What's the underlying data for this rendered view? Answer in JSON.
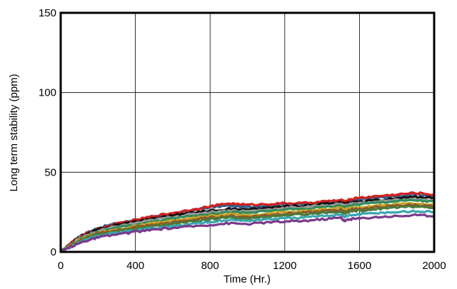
{
  "chart_data": {
    "type": "line",
    "title": "",
    "xlabel": "Time (Hr.)",
    "ylabel": "Long term stability (ppm)",
    "xlim": [
      0,
      2000
    ],
    "ylim": [
      0,
      150
    ],
    "x_ticks": [
      "0",
      "400",
      "800",
      "1200",
      "1600",
      "2000"
    ],
    "y_ticks": [
      "0",
      "50",
      "100",
      "150"
    ],
    "grid": true,
    "legend": "none",
    "x": [
      0,
      50,
      100,
      150,
      200,
      300,
      400,
      500,
      600,
      700,
      800,
      900,
      1000,
      1100,
      1200,
      1300,
      1400,
      1500,
      1520,
      1550,
      1600,
      1700,
      1800,
      1900,
      2000
    ],
    "series": [
      {
        "color": "#2f5d8a",
        "values": [
          0,
          5,
          10,
          12.5,
          15,
          18,
          20,
          22,
          24,
          26,
          28,
          29,
          28,
          29,
          30,
          30,
          31,
          32,
          31,
          32,
          33,
          34,
          35,
          36,
          35
        ]
      },
      {
        "color": "#d42020",
        "values": [
          0,
          5,
          9.5,
          12,
          14.5,
          17.5,
          20,
          22.5,
          24.5,
          26.5,
          28.5,
          30.5,
          29.5,
          30,
          30.5,
          30.5,
          31.5,
          32.5,
          31.5,
          33,
          34,
          35,
          36,
          37,
          36
        ]
      },
      {
        "color": "#111111",
        "values": [
          0,
          4.5,
          9,
          11.5,
          14,
          17,
          19,
          21,
          23,
          24.5,
          26,
          27,
          26.5,
          27.5,
          28.5,
          29,
          30,
          31,
          30,
          31,
          31.5,
          32.5,
          33.5,
          34.5,
          34
        ]
      },
      {
        "color": "#999999",
        "values": [
          0,
          4.5,
          8.5,
          11,
          13,
          16,
          18,
          20,
          22,
          23.5,
          25,
          26,
          25.5,
          26.5,
          27.5,
          28,
          29,
          30,
          29,
          30,
          30.5,
          31.5,
          32.5,
          33,
          32
        ]
      },
      {
        "color": "#2e8b57",
        "values": [
          0,
          4,
          8,
          10.5,
          12.5,
          15,
          17,
          19,
          21,
          22.5,
          24,
          25,
          24.5,
          25.5,
          26.5,
          27,
          28,
          29,
          28,
          29,
          30,
          31,
          32,
          32.5,
          31.5
        ]
      },
      {
        "color": "#c9a227",
        "values": [
          0,
          4,
          7.5,
          10,
          12,
          14,
          16,
          18,
          19.5,
          21,
          22.5,
          23.5,
          23,
          24,
          25,
          25.5,
          26.5,
          27.5,
          26.5,
          27.5,
          28,
          29,
          30,
          30.5,
          29.5
        ]
      },
      {
        "color": "#8b5a2b",
        "values": [
          0,
          3.5,
          7,
          9.5,
          11.5,
          13.5,
          15.5,
          17,
          18.5,
          20,
          21.5,
          22.5,
          22,
          23,
          24,
          24.5,
          25.5,
          26.5,
          25,
          26.5,
          27,
          28,
          29,
          29.5,
          28.5
        ]
      },
      {
        "color": "#4a7a3a",
        "values": [
          0,
          3.5,
          6.5,
          9,
          11,
          13,
          14.5,
          16,
          17.5,
          19,
          20.5,
          21.5,
          21,
          22,
          23,
          23.5,
          24.5,
          25.5,
          24,
          25.5,
          26,
          27,
          28,
          28.5,
          27.5
        ]
      },
      {
        "color": "#3aa6b0",
        "values": [
          0,
          3,
          6,
          8.5,
          10,
          12,
          13.5,
          15,
          16,
          17.5,
          19,
          20,
          19.5,
          20.5,
          21,
          21.5,
          22.5,
          23.5,
          22,
          23,
          23.5,
          24.5,
          25,
          25.5,
          25
        ]
      },
      {
        "color": "#7a3a8a",
        "values": [
          0,
          3,
          5.5,
          7.5,
          9,
          11,
          12.5,
          14,
          15,
          16,
          17,
          18,
          17.5,
          18.5,
          19,
          19.5,
          20.5,
          21.5,
          19.5,
          20.5,
          21,
          22,
          22.5,
          23,
          22.5
        ]
      }
    ]
  }
}
